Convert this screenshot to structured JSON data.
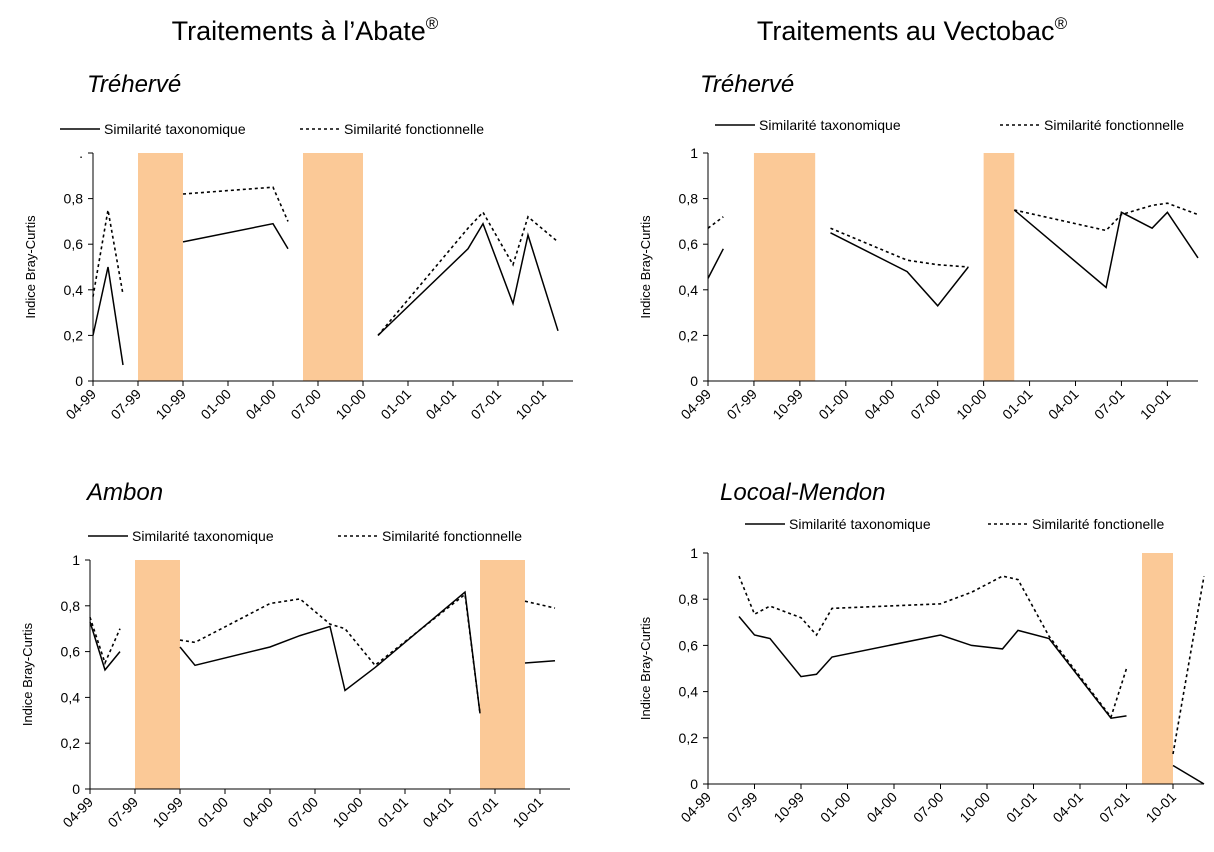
{
  "headings": [
    {
      "text": "Traitements à l’Abate",
      "mark": "®"
    },
    {
      "text": "Traitements au Vectobac",
      "mark": "®"
    }
  ],
  "chart_data": [
    {
      "type": "line",
      "title": "Tréhervé",
      "y_label": "Indice Bray-Curtis",
      "x": [
        "04-99",
        "05-99",
        "06-99",
        "10-99",
        "04-00",
        "05-00",
        "11-00",
        "05-01",
        "06-01",
        "08-01",
        "09-01",
        "11-01"
      ],
      "series": [
        {
          "name": "Similarité taxonomique",
          "color": "#000000",
          "dashed": false,
          "values": [
            0.2,
            0.5,
            0.07,
            0.61,
            0.69,
            0.58,
            0.2,
            0.58,
            0.69,
            0.34,
            0.64,
            0.22
          ]
        },
        {
          "name": "Similarité fonctionnelle",
          "color": "#000000",
          "dashed": true,
          "values": [
            0.37,
            0.75,
            0.38,
            0.82,
            0.85,
            0.7,
            0.2,
            0.67,
            0.74,
            0.51,
            0.72,
            0.61
          ]
        }
      ],
      "bands": [
        {
          "start": "07-99",
          "end": "10-99",
          "color": "#fbc997"
        },
        {
          "start": "06-00",
          "end": "10-00",
          "color": "#fbc997"
        }
      ],
      "xlim": [
        "04-99",
        "12-01"
      ],
      "xticks": [
        "04-99",
        "07-99",
        "10-99",
        "01-00",
        "04-00",
        "07-00",
        "10-00",
        "01-01",
        "04-01",
        "07-01",
        "10-01"
      ],
      "ylim": [
        0,
        1
      ],
      "yticks": [
        0,
        {
          "value": 0.2,
          "label": "0,2"
        },
        {
          "value": 0.4,
          "label": "0,4"
        },
        {
          "value": 0.6,
          "label": "0,6"
        },
        {
          "value": 0.8,
          "label": "0,8"
        },
        {
          "value": 1,
          "label": "."
        }
      ]
    },
    {
      "type": "line",
      "title": "Tréhervé",
      "y_label": "Indice Bray-Curtis",
      "x": [
        "04-99",
        "05-99",
        "12-99",
        "05-00",
        "07-00",
        "09-00",
        "12-00",
        "06-01",
        "07-01",
        "09-01",
        "10-01",
        "12-01"
      ],
      "series": [
        {
          "name": "Similarité taxonomique",
          "color": "#000000",
          "dashed": false,
          "values": [
            0.45,
            0.58,
            0.65,
            0.48,
            0.33,
            0.5,
            0.75,
            0.41,
            0.74,
            0.67,
            0.74,
            0.54
          ]
        },
        {
          "name": "Similarité fonctionnelle",
          "color": "#000000",
          "dashed": true,
          "values": [
            0.67,
            0.72,
            0.67,
            0.53,
            0.51,
            0.5,
            0.75,
            0.66,
            0.73,
            0.77,
            0.78,
            0.73
          ]
        }
      ],
      "bands": [
        {
          "start": "07-99",
          "end": "11-99",
          "color": "#fbc997"
        },
        {
          "start": "10-00",
          "end": "12-00",
          "color": "#fbc997"
        }
      ],
      "xlim": [
        "04-99",
        "12-01"
      ],
      "xticks": [
        "04-99",
        "07-99",
        "10-99",
        "01-00",
        "04-00",
        "07-00",
        "10-00",
        "01-01",
        "04-01",
        "07-01",
        "10-01"
      ],
      "ylim": [
        0,
        1
      ],
      "yticks": [
        0,
        {
          "value": 0.2,
          "label": "0,2"
        },
        {
          "value": 0.4,
          "label": "0,4"
        },
        {
          "value": 0.6,
          "label": "0,6"
        },
        {
          "value": 0.8,
          "label": "0,8"
        },
        1
      ]
    },
    {
      "type": "line",
      "title": "Ambon",
      "y_label": "Indice Bray-Curtis",
      "x": [
        "04-99",
        "05-99",
        "06-99",
        "10-99",
        "11-99",
        "04-00",
        "06-00",
        "08-00",
        "09-00",
        "11-00",
        "05-01",
        "06-01",
        "09-01",
        "11-01"
      ],
      "series": [
        {
          "name": "Similarité taxonomique",
          "color": "#000000",
          "dashed": false,
          "values": [
            0.73,
            0.52,
            0.6,
            0.62,
            0.54,
            0.62,
            0.67,
            0.71,
            0.43,
            0.53,
            0.86,
            0.33,
            0.55,
            0.56
          ]
        },
        {
          "name": "Similarité fonctionnelle",
          "color": "#000000",
          "dashed": true,
          "values": [
            0.75,
            0.55,
            0.7,
            0.65,
            0.64,
            0.81,
            0.83,
            0.72,
            0.7,
            0.54,
            0.85,
            0.33,
            0.82,
            0.79
          ]
        }
      ],
      "bands": [
        {
          "start": "07-99",
          "end": "10-99",
          "color": "#fbc997"
        },
        {
          "start": "06-01",
          "end": "09-01",
          "color": "#fbc997"
        }
      ],
      "xlim": [
        "04-99",
        "12-01"
      ],
      "xticks": [
        "04-99",
        "07-99",
        "10-99",
        "01-00",
        "04-00",
        "07-00",
        "10-00",
        "01-01",
        "04-01",
        "07-01",
        "10-01"
      ],
      "ylim": [
        0,
        1
      ],
      "yticks": [
        0,
        {
          "value": 0.2,
          "label": "0,2"
        },
        {
          "value": 0.4,
          "label": "0,4"
        },
        {
          "value": 0.6,
          "label": "0,6"
        },
        {
          "value": 0.8,
          "label": "0,8"
        },
        1
      ]
    },
    {
      "type": "line",
      "title": "Locoal-Mendon",
      "y_label": "Indice Bray-Curtis",
      "x": [
        "06-99",
        "07-99",
        "08-99",
        "10-99",
        "11-99",
        "12-99",
        "07-00",
        "09-00",
        "11-00",
        "12-00",
        "02-01",
        "06-01",
        "07-01",
        "10-01",
        "12-01"
      ],
      "series": [
        {
          "name": "Similarité taxonomique",
          "color": "#000000",
          "dashed": false,
          "values": [
            0.725,
            0.645,
            0.63,
            0.465,
            0.475,
            0.55,
            0.645,
            0.6,
            0.585,
            0.665,
            0.63,
            0.285,
            0.295,
            0.08,
            0
          ]
        },
        {
          "name": "Similarité fonctionelle",
          "color": "#000000",
          "dashed": true,
          "values": [
            0.9,
            0.735,
            0.77,
            0.72,
            0.645,
            0.76,
            0.78,
            0.83,
            0.9,
            0.885,
            0.64,
            0.29,
            0.5,
            0.13,
            0.9
          ]
        }
      ],
      "bands": [
        {
          "start": "08-01",
          "end": "10-01",
          "color": "#fbc997"
        }
      ],
      "xlim": [
        "04-99",
        "12-01"
      ],
      "xticks": [
        "04-99",
        "07-99",
        "10-99",
        "01-00",
        "04-00",
        "07-00",
        "10-00",
        "01-01",
        "04-01",
        "07-01",
        "10-01"
      ],
      "ylim": [
        0,
        1
      ],
      "yticks": [
        0,
        {
          "value": 0.2,
          "label": "0,2"
        },
        {
          "value": 0.4,
          "label": "0,4"
        },
        {
          "value": 0.6,
          "label": "0,6"
        },
        {
          "value": 0.8,
          "label": "0,8"
        },
        1
      ]
    }
  ]
}
